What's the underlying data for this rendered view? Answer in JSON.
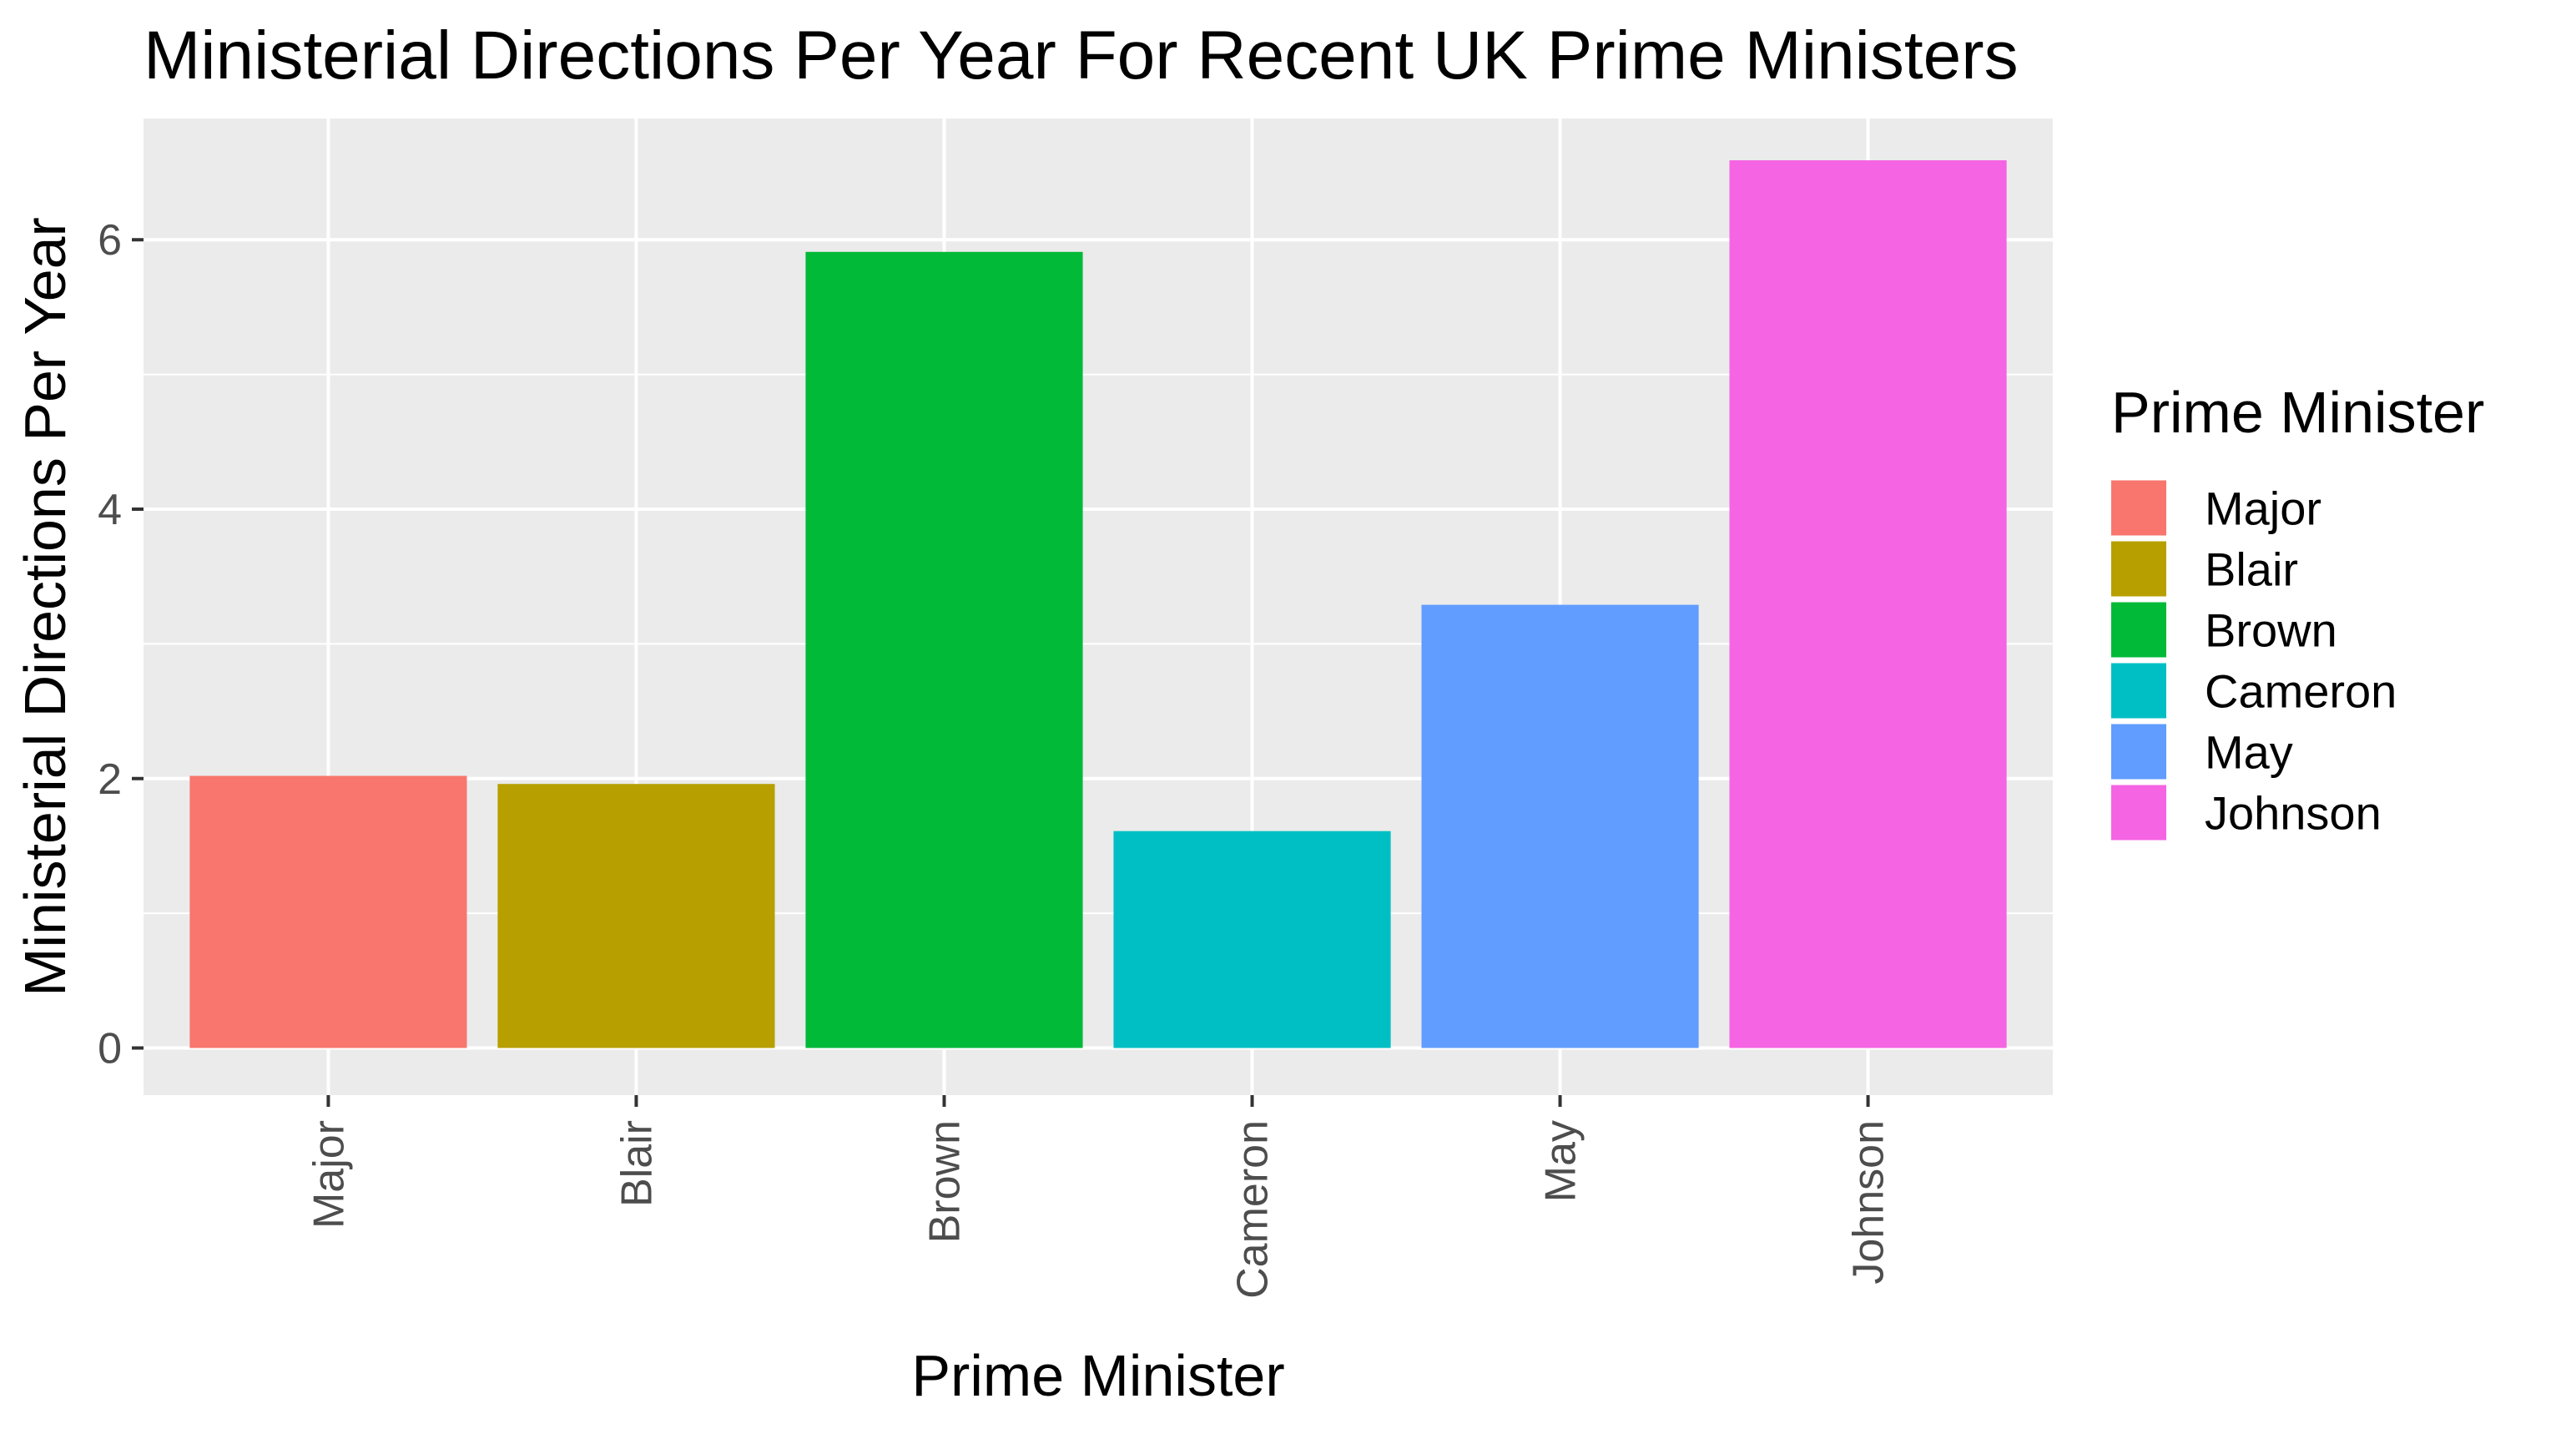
{
  "chart_data": {
    "type": "bar",
    "title": "Ministerial Directions Per Year For Recent UK Prime Ministers",
    "xlabel": "Prime Minister",
    "ylabel": "Ministerial Directions Per Year",
    "categories": [
      "Major",
      "Blair",
      "Brown",
      "Cameron",
      "May",
      "Johnson"
    ],
    "values": [
      2.02,
      1.96,
      5.91,
      1.61,
      3.29,
      6.59
    ],
    "colors": [
      "#F8766D",
      "#B79F00",
      "#00BA38",
      "#00BFC4",
      "#619CFF",
      "#F564E3"
    ],
    "ylim": [
      -0.35,
      6.9
    ],
    "yticks": [
      0,
      2,
      4,
      6
    ],
    "grid": true,
    "legend": {
      "title": "Prime Minister",
      "placement": "right",
      "entries": [
        "Major",
        "Blair",
        "Brown",
        "Cameron",
        "May",
        "Johnson"
      ]
    }
  }
}
